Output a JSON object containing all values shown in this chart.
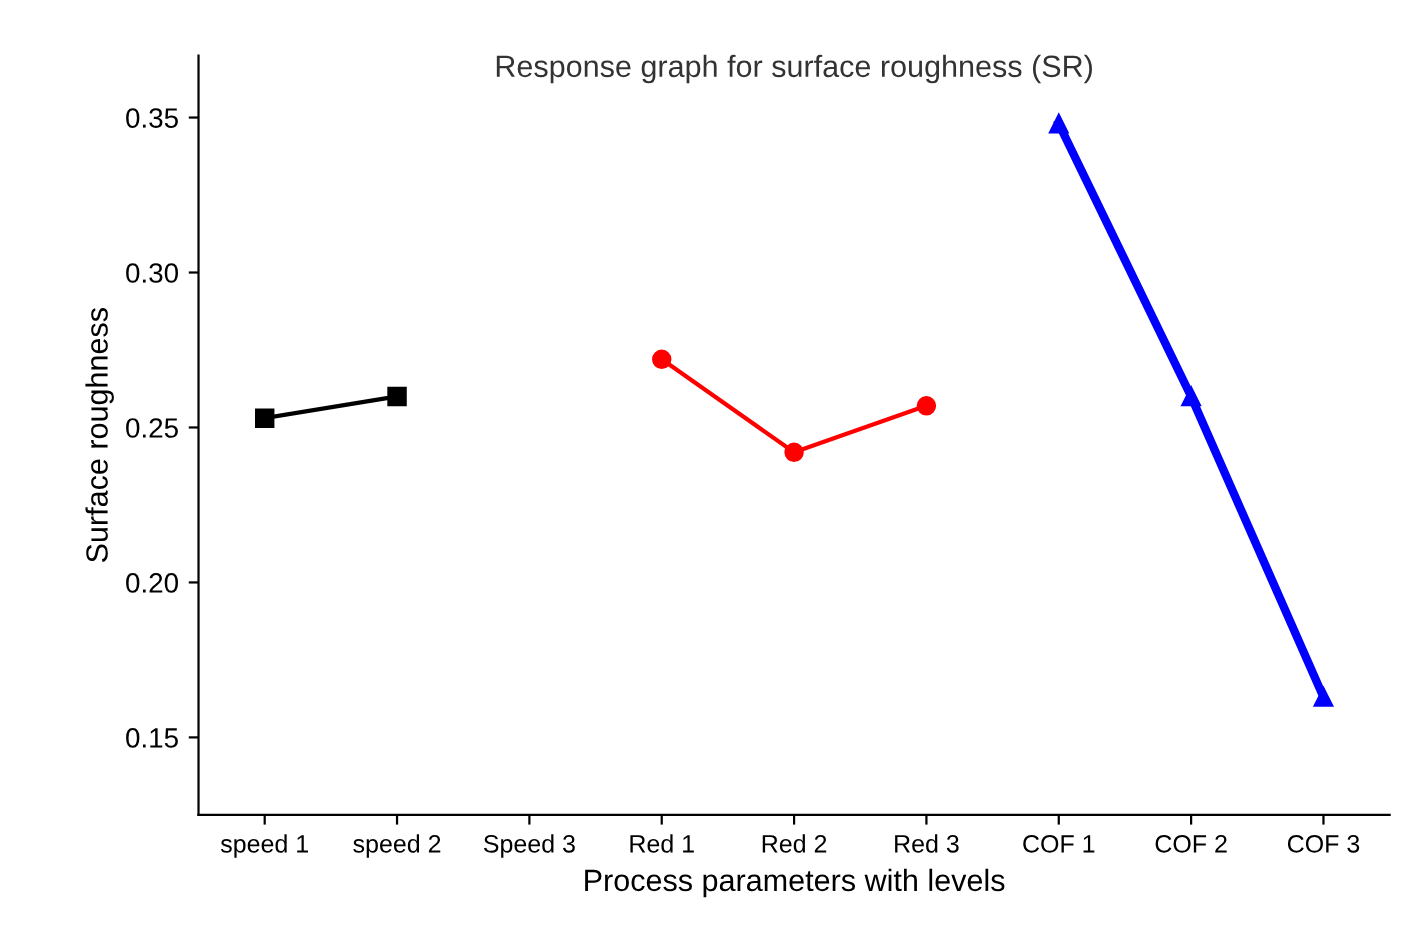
{
  "chart_data": {
    "type": "line",
    "title": "Response graph for surface roughness (SR)",
    "xlabel": "Process parameters with levels",
    "ylabel": "Surface roughness",
    "categories": [
      "speed 1",
      "speed 2",
      "Speed 3",
      "Red 1",
      "Red 2",
      "Red 3",
      "COF 1",
      "COF 2",
      "COF 3"
    ],
    "series": [
      {
        "color": "#000000",
        "marker": "square",
        "values": [
          0.253,
          0.26,
          null,
          null,
          null,
          null,
          null,
          null,
          null
        ]
      },
      {
        "color": "#ff0000",
        "marker": "circle",
        "values": [
          null,
          null,
          null,
          0.272,
          0.242,
          0.257,
          null,
          null,
          null
        ]
      },
      {
        "color": "#0000ff",
        "marker": "triangle",
        "values": [
          null,
          null,
          null,
          null,
          null,
          null,
          0.348,
          0.26,
          0.163
        ]
      }
    ],
    "ylim": [
      0.125,
      0.37
    ],
    "yticks": [
      {
        "value": 0.15,
        "label": "0.15"
      },
      {
        "value": 0.2,
        "label": "0.20"
      },
      {
        "value": 0.25,
        "label": "0.25"
      },
      {
        "value": 0.3,
        "label": "0.30"
      },
      {
        "value": 0.35,
        "label": "0.35"
      }
    ],
    "grid": false,
    "legend": false
  }
}
